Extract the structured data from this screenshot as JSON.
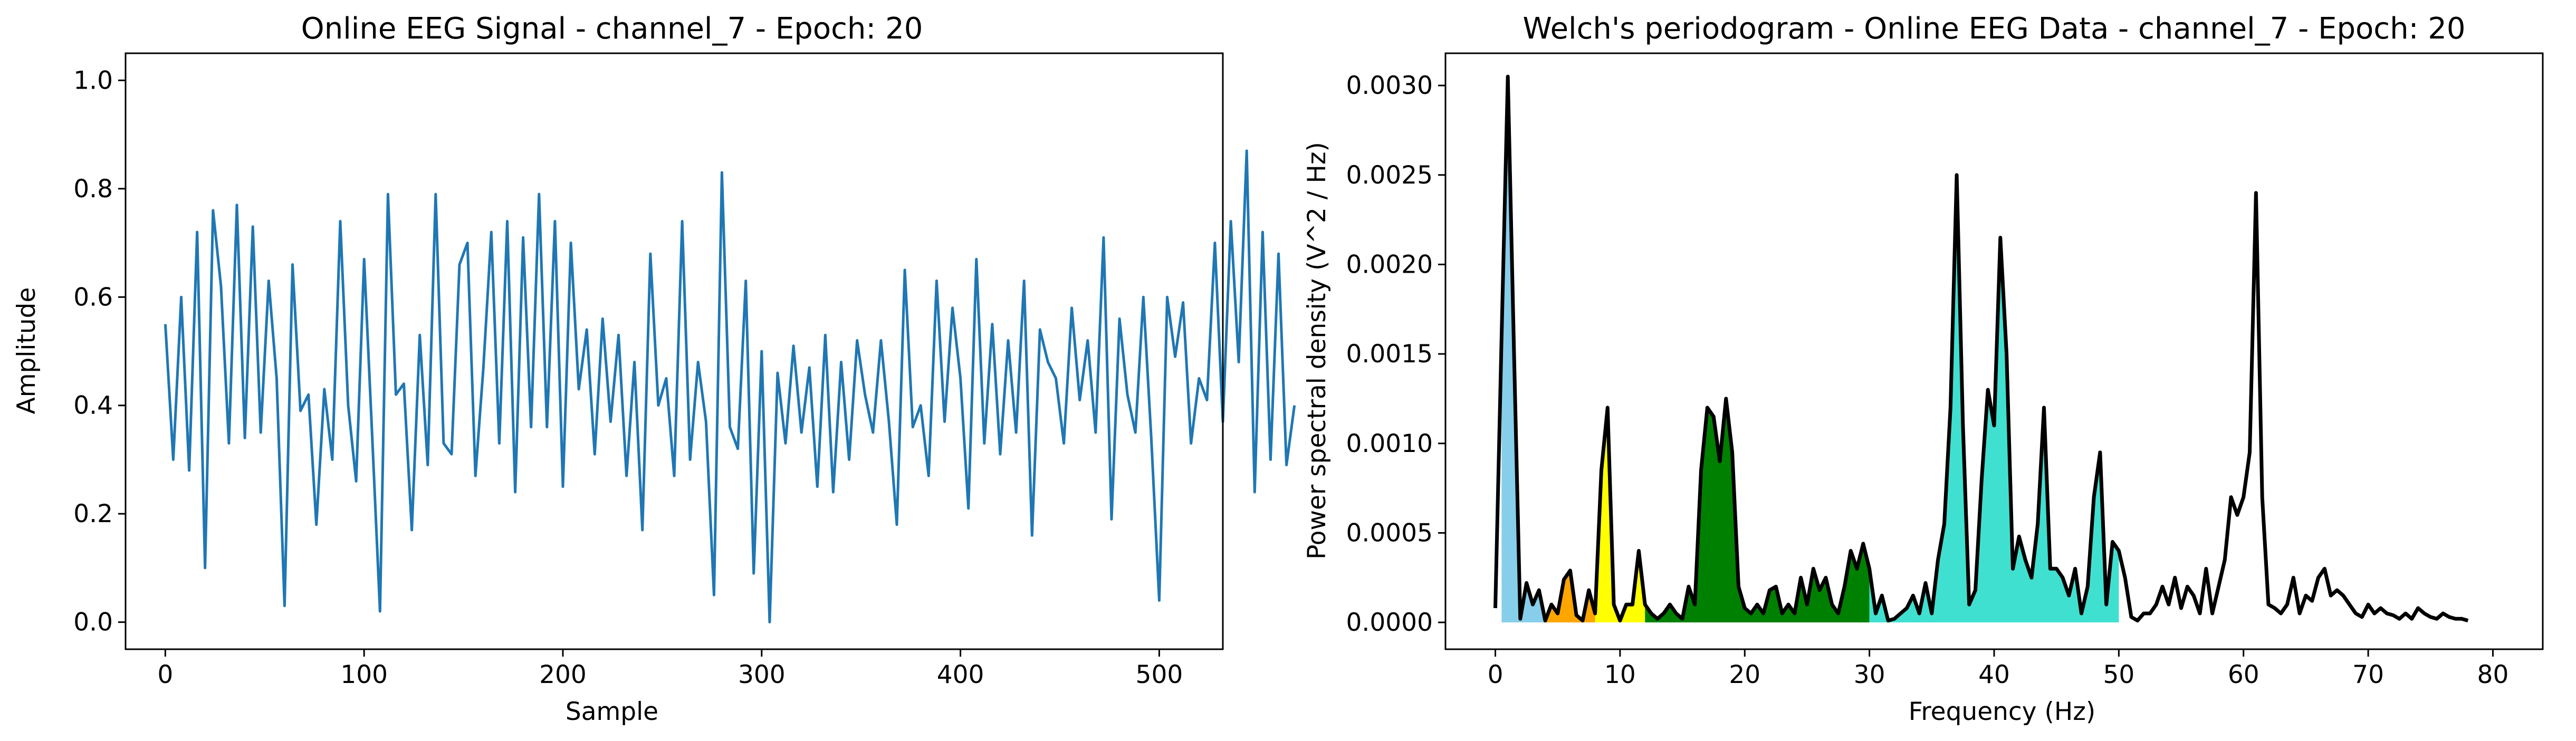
{
  "chart_data": [
    {
      "type": "line",
      "title": "Online EEG Signal - channel_7 - Epoch: 20",
      "xlabel": "Sample",
      "ylabel": "Amplitude",
      "xlim": [
        -20,
        532
      ],
      "ylim": [
        -0.05,
        1.05
      ],
      "xticks": [
        0,
        100,
        200,
        300,
        400,
        500
      ],
      "yticks": [
        0.0,
        0.2,
        0.4,
        0.6,
        0.8,
        1.0
      ],
      "xtick_labels": [
        "0",
        "100",
        "200",
        "300",
        "400",
        "500"
      ],
      "ytick_labels": [
        "0.0",
        "0.2",
        "0.4",
        "0.6",
        "0.8",
        "1.0"
      ],
      "grid": false,
      "series": [
        {
          "color": "#1f77b4",
          "x_start": 0,
          "x_step": 4,
          "values": [
            0.55,
            0.3,
            0.6,
            0.28,
            0.72,
            0.1,
            0.76,
            0.62,
            0.33,
            0.77,
            0.34,
            0.73,
            0.35,
            0.63,
            0.45,
            0.03,
            0.66,
            0.39,
            0.42,
            0.18,
            0.43,
            0.3,
            0.74,
            0.4,
            0.26,
            0.67,
            0.35,
            0.02,
            0.79,
            0.42,
            0.44,
            0.17,
            0.53,
            0.29,
            0.79,
            0.33,
            0.31,
            0.66,
            0.7,
            0.27,
            0.47,
            0.72,
            0.33,
            0.74,
            0.24,
            0.71,
            0.36,
            0.79,
            0.36,
            0.74,
            0.25,
            0.7,
            0.43,
            0.54,
            0.31,
            0.56,
            0.37,
            0.53,
            0.27,
            0.48,
            0.17,
            0.68,
            0.4,
            0.45,
            0.27,
            0.74,
            0.3,
            0.48,
            0.37,
            0.05,
            0.83,
            0.36,
            0.32,
            0.63,
            0.09,
            0.5,
            0.0,
            0.46,
            0.33,
            0.51,
            0.35,
            0.47,
            0.25,
            0.53,
            0.24,
            0.48,
            0.3,
            0.52,
            0.42,
            0.35,
            0.52,
            0.37,
            0.18,
            0.65,
            0.36,
            0.4,
            0.27,
            0.63,
            0.37,
            0.58,
            0.45,
            0.21,
            0.67,
            0.33,
            0.55,
            0.31,
            0.52,
            0.35,
            0.63,
            0.16,
            0.54,
            0.48,
            0.45,
            0.33,
            0.58,
            0.41,
            0.52,
            0.35,
            0.71,
            0.19,
            0.56,
            0.42,
            0.35,
            0.6,
            0.34,
            0.04,
            0.6,
            0.49,
            0.59,
            0.33,
            0.45,
            0.41,
            0.7,
            0.37,
            0.74,
            0.48,
            0.87,
            0.24,
            0.72,
            0.3,
            0.68,
            0.29,
            0.4
          ]
        }
      ]
    },
    {
      "type": "area",
      "title": "Welch's periodogram - Online EEG Data - channel_7 - Epoch: 20",
      "xlabel": "Frequency (Hz)",
      "ylabel": "Power spectral density (V^2 / Hz)",
      "xlim": [
        -4,
        84
      ],
      "ylim": [
        -0.00015,
        0.00318
      ],
      "xticks": [
        0,
        10,
        20,
        30,
        40,
        50,
        60,
        70,
        80
      ],
      "yticks": [
        0.0,
        0.0005,
        0.001,
        0.0015,
        0.002,
        0.0025,
        0.003
      ],
      "xtick_labels": [
        "0",
        "10",
        "20",
        "30",
        "40",
        "50",
        "60",
        "70",
        "80"
      ],
      "ytick_labels": [
        "0.0000",
        "0.0005",
        "0.0010",
        "0.0015",
        "0.0020",
        "0.0025",
        "0.0030"
      ],
      "grid": false,
      "line_color": "#000000",
      "bands": [
        {
          "from": 0.5,
          "to": 4,
          "color": "#87ceeb"
        },
        {
          "from": 4,
          "to": 8,
          "color": "#ffa500"
        },
        {
          "from": 8,
          "to": 12,
          "color": "#ffff00"
        },
        {
          "from": 12,
          "to": 30,
          "color": "#008000"
        },
        {
          "from": 30,
          "to": 50,
          "color": "#40e0d0"
        }
      ],
      "series": [
        {
          "x_start": 0,
          "x_step": 0.5,
          "values": [
            8e-05,
            0.0016,
            0.00305,
            0.0015,
            2e-05,
            0.00022,
            0.0001,
            0.00018,
            1e-05,
            0.0001,
            5e-05,
            0.00024,
            0.00029,
            4e-05,
            1e-05,
            0.00018,
            5e-05,
            0.00085,
            0.0012,
            0.0001,
            1e-05,
            0.0001,
            0.0001,
            0.0004,
            0.0001,
            5e-05,
            2e-05,
            5e-05,
            0.0001,
            5e-05,
            2e-05,
            0.0002,
            0.0001,
            0.00085,
            0.0012,
            0.00115,
            0.0009,
            0.00125,
            0.00095,
            0.0002,
            8e-05,
            5e-05,
            0.0001,
            5e-05,
            0.00018,
            0.0002,
            5e-05,
            0.0001,
            5e-05,
            0.00025,
            0.0001,
            0.0003,
            0.00018,
            0.00025,
            0.0001,
            5e-05,
            0.0002,
            0.0004,
            0.0003,
            0.00044,
            0.0003,
            5e-05,
            0.00015,
            1e-05,
            2e-05,
            5e-05,
            8e-05,
            0.00015,
            5e-05,
            0.00022,
            5e-05,
            0.00035,
            0.00055,
            0.0012,
            0.0025,
            0.0011,
            0.0001,
            0.00018,
            0.0008,
            0.0013,
            0.0011,
            0.00215,
            0.0015,
            0.0003,
            0.00048,
            0.00035,
            0.00025,
            0.00055,
            0.0012,
            0.0003,
            0.0003,
            0.00025,
            0.00015,
            0.0003,
            5e-05,
            0.0002,
            0.0007,
            0.00095,
            0.0001,
            0.00045,
            0.0004,
            0.00025,
            3e-05,
            1e-05,
            5e-05,
            5e-05,
            0.0001,
            0.0002,
            0.0001,
            0.00025,
            8e-05,
            0.0002,
            0.00015,
            5e-05,
            0.0003,
            5e-05,
            0.0002,
            0.00035,
            0.0007,
            0.0006,
            0.0007,
            0.00095,
            0.0024,
            0.0007,
            0.0001,
            8e-05,
            5e-05,
            0.0001,
            0.00025,
            5e-05,
            0.00015,
            0.00012,
            0.00025,
            0.0003,
            0.00015,
            0.00018,
            0.00015,
            0.0001,
            5e-05,
            3e-05,
            0.0001,
            5e-05,
            8e-05,
            5e-05,
            4e-05,
            2e-05,
            5e-05,
            2e-05,
            8e-05,
            5e-05,
            3e-05,
            2e-05,
            5e-05,
            3e-05,
            2e-05,
            2e-05,
            1e-05
          ]
        }
      ]
    }
  ]
}
